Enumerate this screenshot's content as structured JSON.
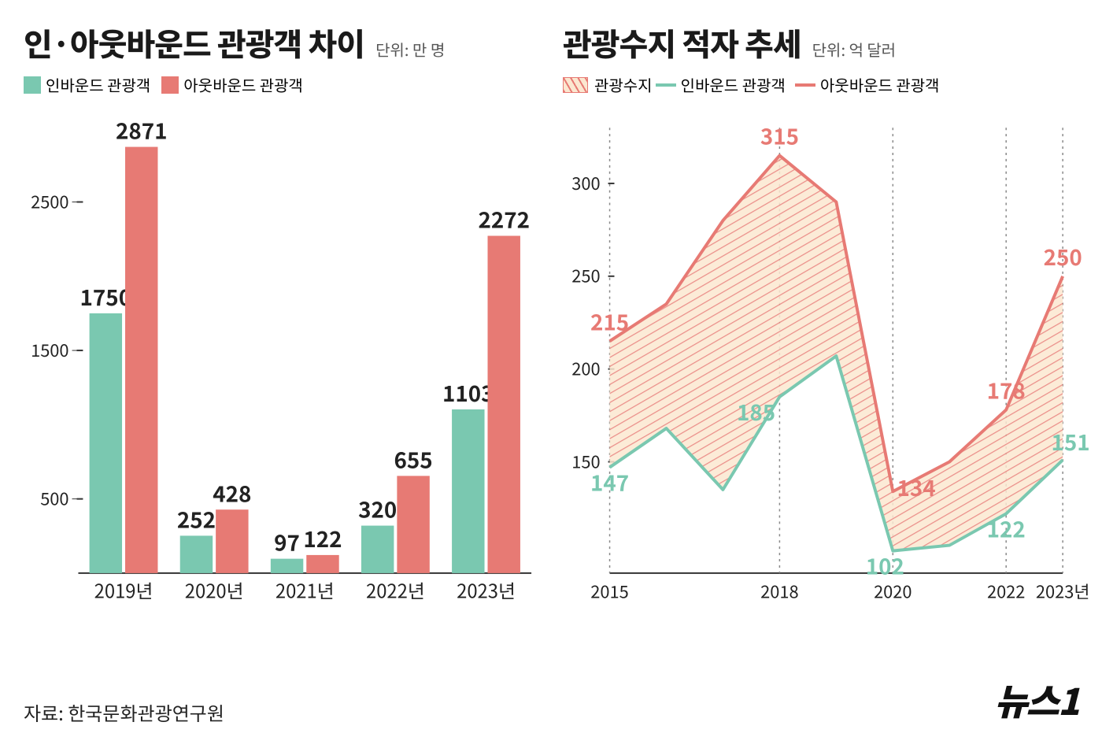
{
  "left_chart": {
    "type": "bar",
    "title": "인·아웃바운드 관광객 차이",
    "unit": "단위: 만 명",
    "legend": {
      "inbound_label": "인바운드 관광객",
      "outbound_label": "아웃바운드 관광객"
    },
    "categories": [
      "2019년",
      "2020년",
      "2021년",
      "2022년",
      "2023년"
    ],
    "inbound_values": [
      1750,
      252,
      97,
      320,
      1103
    ],
    "outbound_values": [
      2871,
      428,
      122,
      655,
      2272
    ],
    "ylim": [
      0,
      3000
    ],
    "yticks": [
      500,
      1500,
      2500
    ],
    "colors": {
      "inbound": "#7ac8b0",
      "outbound": "#e77a74",
      "axis": "#333333",
      "text_dark": "#222222",
      "inbound_label": "#7ac8b0",
      "outbound_label": "#e77a74"
    },
    "bar_width": 0.36,
    "title_fontsize": 40,
    "label_fontsize": 24,
    "value_fontsize": 28,
    "axis_fontsize": 22
  },
  "right_chart": {
    "type": "line-area",
    "title": "관광수지 적자 추세",
    "unit": "단위: 억 달러",
    "legend": {
      "balance_label": "관광수지",
      "inbound_label": "인바운드 관광객",
      "outbound_label": "아웃바운드 관광객"
    },
    "years": [
      2015,
      2016,
      2017,
      2018,
      2019,
      2020,
      2021,
      2022,
      2023
    ],
    "x_ticks": [
      "2015",
      "2018",
      "2020",
      "2022",
      "2023년"
    ],
    "x_tick_years": [
      2015,
      2018,
      2020,
      2022,
      2023
    ],
    "outbound_values": [
      215,
      235,
      280,
      315,
      290,
      134,
      150,
      178,
      250
    ],
    "inbound_values": [
      147,
      168,
      135,
      185,
      207,
      102,
      105,
      122,
      151
    ],
    "value_labels_outbound": {
      "2015": "215",
      "2018": "315",
      "2020": "134",
      "2022": "178",
      "2023": "250"
    },
    "value_labels_inbound": {
      "2015": "147",
      "2018": "185",
      "2020": "102",
      "2022": "122",
      "2023": "151"
    },
    "ylim": [
      90,
      330
    ],
    "yticks": [
      150,
      200,
      250,
      300
    ],
    "colors": {
      "inbound_line": "#7ac8b0",
      "outbound_line": "#e77a74",
      "hatch_fill": "#fbe7d0",
      "hatch_stroke": "#e77a74",
      "axis": "#333333",
      "dotted": "#888888"
    },
    "line_width": 4,
    "title_fontsize": 40,
    "value_fontsize": 28,
    "axis_fontsize": 22
  },
  "footer": {
    "source": "자료: 한국문화관광연구원",
    "brand": "뉴스1"
  }
}
